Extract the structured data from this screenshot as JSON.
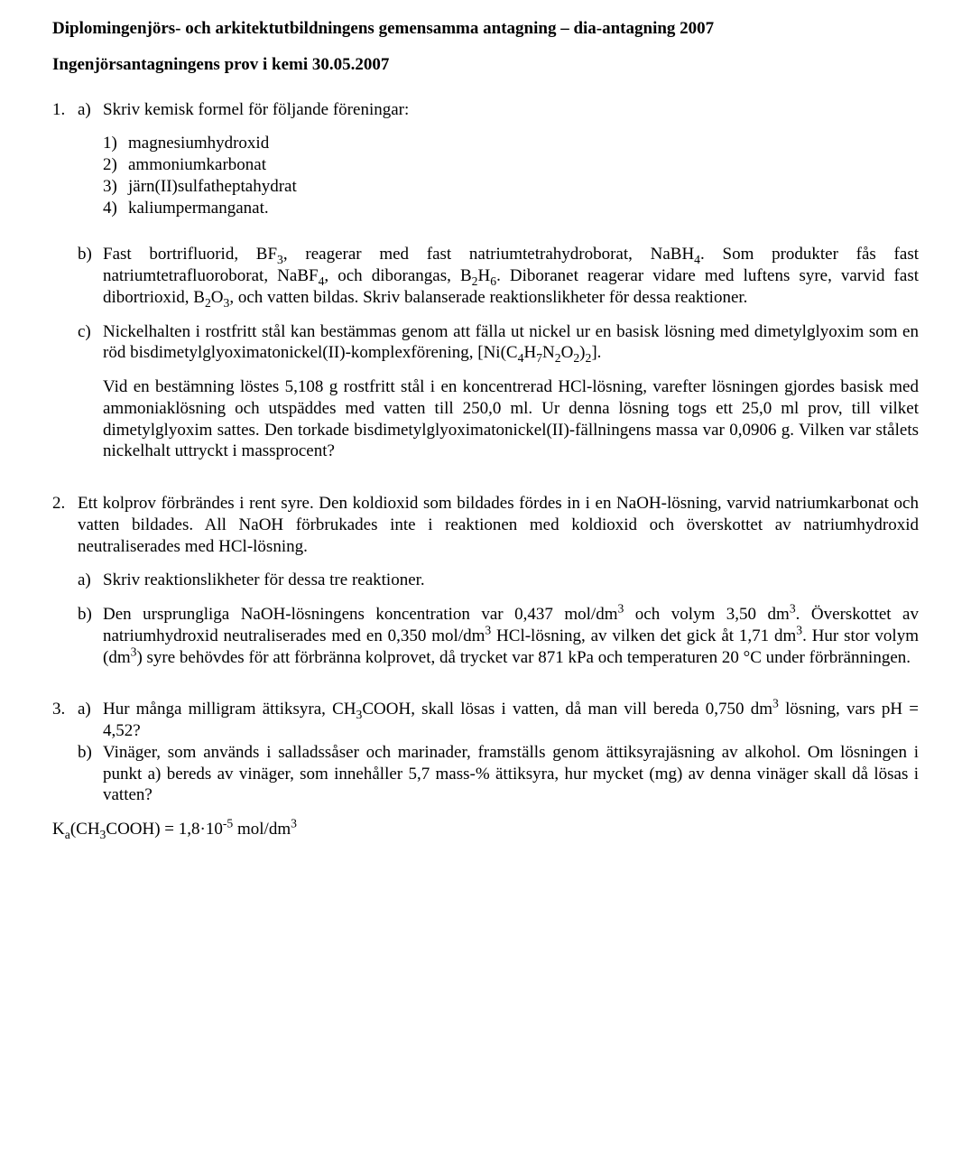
{
  "header": {
    "line1": "Diplomingenjörs- och arkitektutbildningens gemensamma antagning – dia-antagning 2007",
    "line2": "Ingenjörsantagningens prov i kemi 30.05.2007"
  },
  "q1": {
    "num": "1.",
    "a": {
      "label": "a)",
      "lead": "Skriv kemisk formel för följande föreningar:",
      "items": {
        "i1": {
          "n": "1)",
          "t": "magnesiumhydroxid"
        },
        "i2": {
          "n": "2)",
          "t": "ammoniumkarbonat"
        },
        "i3": {
          "n": "3)",
          "t": "järn(II)sulfatheptahydrat"
        },
        "i4": {
          "n": "4)",
          "t": "kaliumpermanganat."
        }
      }
    },
    "b": {
      "label": "b)",
      "t1": "Fast bortrifluorid, BF",
      "t2": ", reagerar med fast natriumtetrahydroborat, NaBH",
      "t3": ". Som produkter fås fast natriumtetrafluoroborat, NaBF",
      "t4": ", och diborangas, B",
      "t5": "H",
      "t6": ". Diboranet reagerar vidare med luftens syre, varvid fast dibortrioxid, B",
      "t7": "O",
      "t8": ", och vatten bildas. Skriv balanserade reaktions­likheter för dessa reaktioner.",
      "s3": "3",
      "s4a": "4",
      "s4b": "4",
      "s2a": "2",
      "s6": "6",
      "s2b": "2",
      "s3b": "3"
    },
    "c": {
      "label": "c)",
      "p1a": "Nickelhalten i rostfritt stål kan bestämmas genom att fälla ut nickel ur en basisk lösning med dimetylglyoxim som en röd bisdimetylglyoximatonickel(II)-komplexförening, [Ni(C",
      "p1b": "H",
      "p1c": "N",
      "p1d": "O",
      "p1e": ")",
      "p1f": "].",
      "s4": "4",
      "s7": "7",
      "s2a": "2",
      "s2b": "2",
      "s2c": "2",
      "p2": "Vid en bestämning löstes 5,108 g rostfritt stål i en koncentrerad HCl-lösning, varefter lösningen gjordes basisk med ammoniaklösning och utspäddes med vatten till 250,0 ml. Ur denna lösning togs ett 25,0 ml prov, till vilket dimetylglyoxim sattes. Den torkade bisdimetylglyoximatonickel(II)-fällningens massa var 0,0906 g. Vilken var stålets nickelhalt uttryckt i massprocent?"
    }
  },
  "q2": {
    "num": "2.",
    "intro": "Ett kolprov förbrändes i rent syre. Den koldioxid som bildades fördes in i en NaOH-lösning, varvid natriumkarbonat och vatten bildades. All NaOH förbrukades inte i reaktionen med koldioxid och överskottet av natriumhydroxid neutraliserades med HCl-lösning.",
    "a": {
      "label": "a)",
      "t": "Skriv reaktionslikheter för dessa tre reaktioner."
    },
    "b": {
      "label": "b)",
      "t1": "Den ursprungliga NaOH-lösningens koncentration var 0,437 mol/dm",
      "t2": " och volym 3,50 dm",
      "t3": ". Överskottet av natriumhydroxid neutraliserades med en 0,350 mol/dm",
      "t4": " HCl-lösning, av vilken det gick åt 1,71 dm",
      "t5": ". Hur stor volym (dm",
      "t6": ") syre behövdes för att förbränna kolprovet, då trycket var 871 kPa och temperaturen 20 °C under förbränningen.",
      "p3": "3"
    }
  },
  "q3": {
    "num": "3.",
    "a": {
      "label": "a)",
      "t1": "Hur många milligram ättiksyra, CH",
      "t2": "COOH, skall lösas i vatten, då man vill bereda 0,750 dm",
      "t3": " lösning, vars pH = 4,52?",
      "s3": "3",
      "p3": "3"
    },
    "b": {
      "label": "b)",
      "t": "Vinäger, som används i salladssåser och marinader, framställs genom ättiksyrajäsning av alkohol. Om lösningen i punkt a) bereds av vinäger, som innehåller 5,7 mass-% ättiksyra, hur mycket (mg) av denna vinäger skall då lösas i vatten?"
    },
    "ka": {
      "t1": "K",
      "t2": "(CH",
      "t3": "COOH) = 1,8·10",
      "t4": " mol/dm",
      "sa": "a",
      "s3a": "3",
      "pneg5": "-5",
      "p3": "3"
    }
  }
}
